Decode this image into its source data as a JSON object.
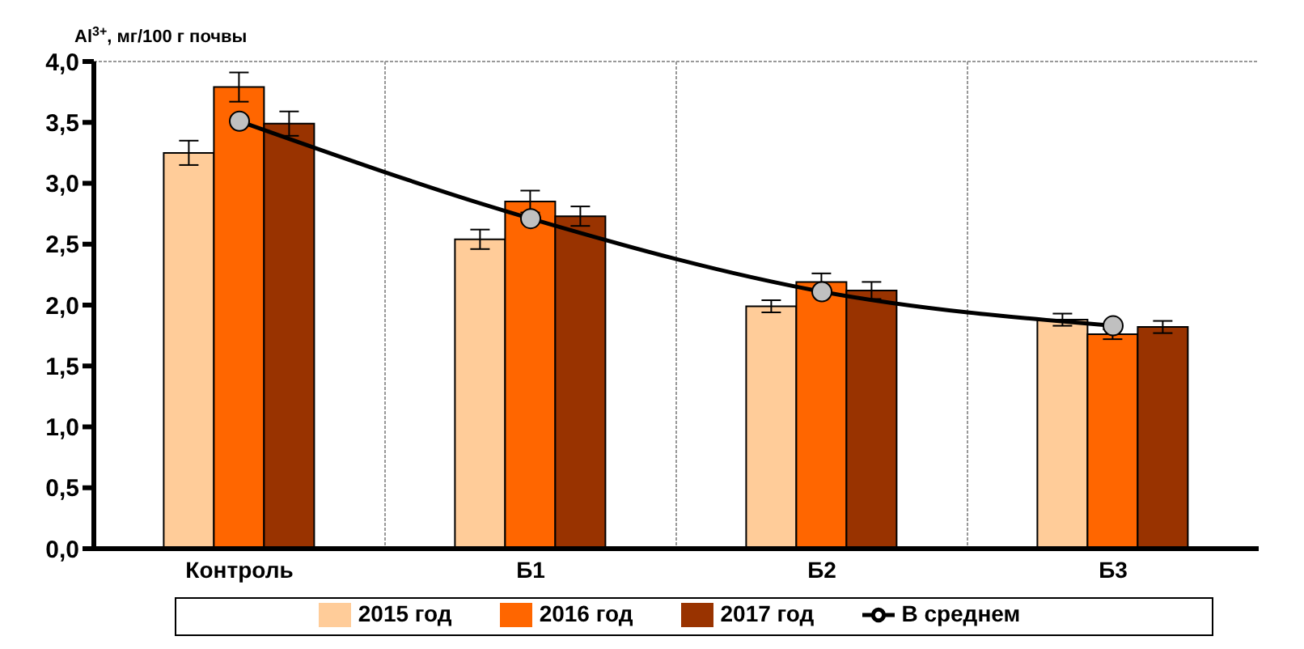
{
  "chart_data": {
    "type": "bar",
    "ylabel": "Al$^{3+}$, мг/100 г почвы",
    "categories": [
      "Контроль",
      "Б1",
      "Б2",
      "Б3"
    ],
    "series": [
      {
        "name": "2015 год",
        "color": "#ffcc99",
        "values": [
          3.25,
          2.54,
          1.99,
          1.88
        ],
        "errors": [
          0.1,
          0.08,
          0.05,
          0.05
        ]
      },
      {
        "name": "2016 год",
        "color": "#ff6600",
        "values": [
          3.79,
          2.85,
          2.19,
          1.76
        ],
        "errors": [
          0.12,
          0.09,
          0.07,
          0.04
        ]
      },
      {
        "name": "2017 год",
        "color": "#993300",
        "values": [
          3.49,
          2.73,
          2.12,
          1.82
        ],
        "errors": [
          0.1,
          0.08,
          0.07,
          0.05
        ]
      },
      {
        "name": "В среднем",
        "type": "line",
        "color": "#000000",
        "marker": "circle",
        "values": [
          3.51,
          2.71,
          2.11,
          1.83
        ]
      }
    ],
    "ylim": [
      0,
      4
    ],
    "yticks": [
      {
        "value": 0,
        "label": "0,0"
      },
      {
        "value": 0.5,
        "label": "0,5"
      },
      {
        "value": 1,
        "label": "1,0"
      },
      {
        "value": 1.5,
        "label": "1,5"
      },
      {
        "value": 2,
        "label": "2,0"
      },
      {
        "value": 2.5,
        "label": "2,5"
      },
      {
        "value": 3,
        "label": "3,0"
      },
      {
        "value": 3.5,
        "label": "3,5"
      },
      {
        "value": 4,
        "label": "4,0"
      }
    ],
    "grid": true,
    "legend": "bottom"
  }
}
